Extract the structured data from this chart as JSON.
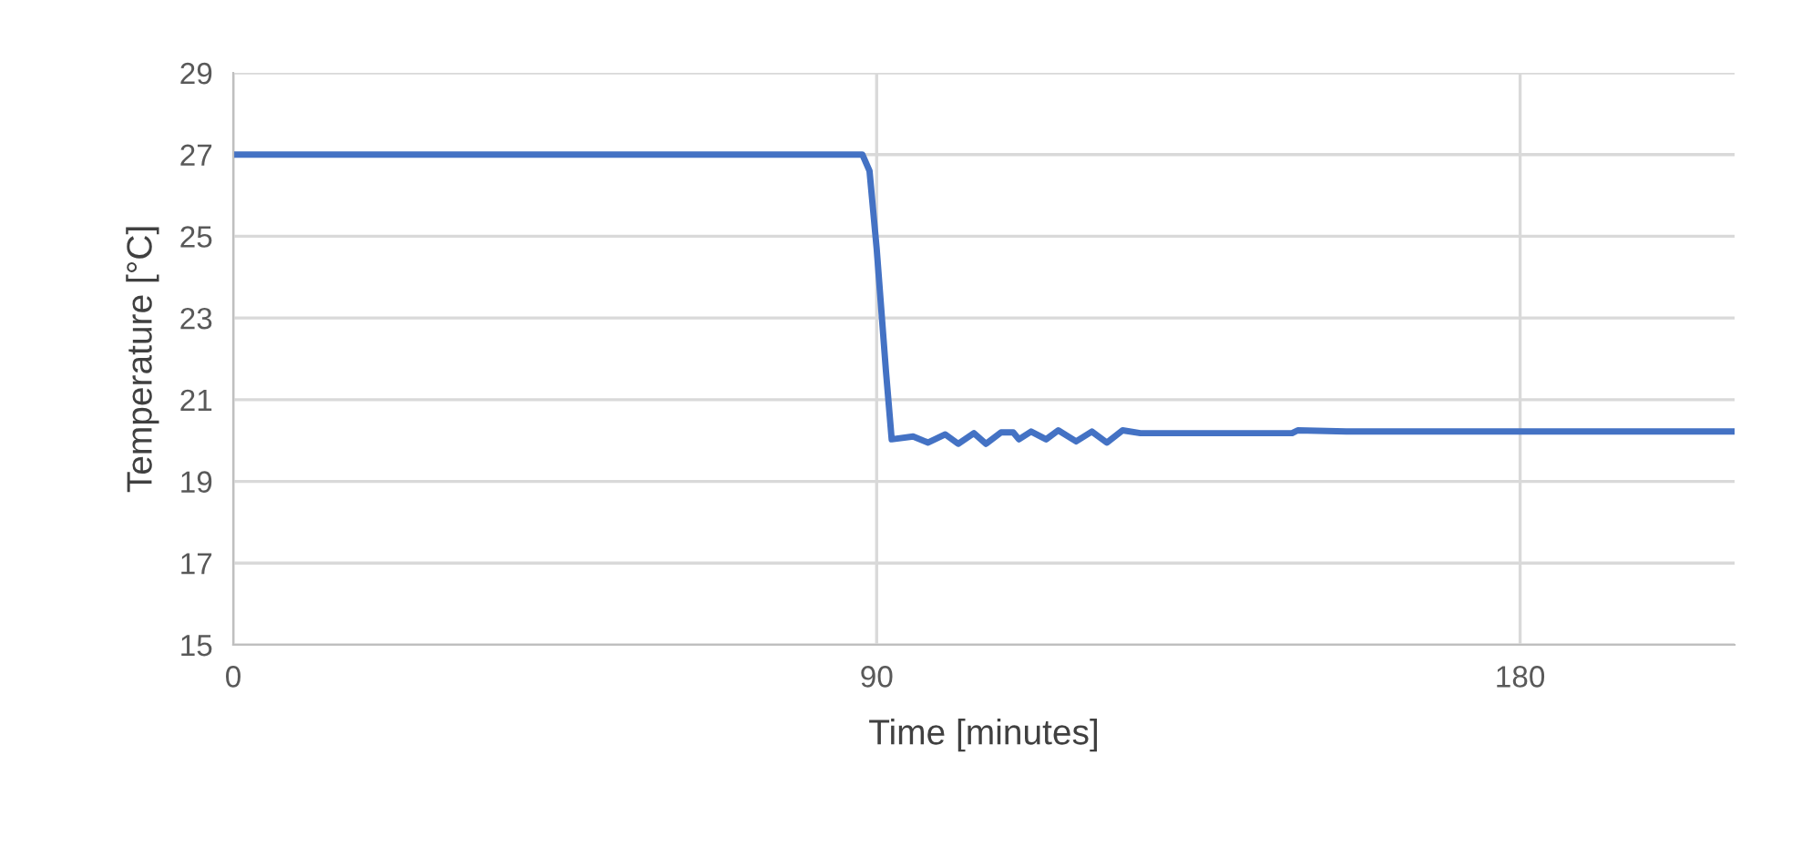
{
  "chart_data": {
    "type": "line",
    "xlabel": "Time [minutes]",
    "ylabel": "Temperature [°C]",
    "xlim": [
      0,
      210
    ],
    "xticks": [
      0,
      90,
      180
    ],
    "ylim": [
      15,
      29
    ],
    "yticks": [
      15,
      17,
      19,
      21,
      23,
      25,
      27,
      29
    ],
    "grid": true,
    "series": [
      {
        "color": "#4472c4",
        "x": [
          0,
          88,
          89,
          90,
          91.3,
          92.1,
          95.1,
          97.2,
          99.6,
          101.4,
          103.6,
          105.3,
          107.4,
          109.1,
          109.9,
          111.6,
          113.7,
          115.4,
          117.9,
          120.1,
          122.2,
          124.4,
          126.9,
          148.1,
          148.9,
          155.7,
          210
        ],
        "values": [
          27,
          27,
          26.6,
          24.7,
          21.7,
          20.03,
          20.1,
          19.95,
          20.15,
          19.92,
          20.18,
          19.92,
          20.2,
          20.2,
          20.03,
          20.22,
          20.03,
          20.25,
          19.98,
          20.22,
          19.95,
          20.25,
          20.18,
          20.18,
          20.25,
          20.22,
          20.22
        ]
      }
    ]
  }
}
